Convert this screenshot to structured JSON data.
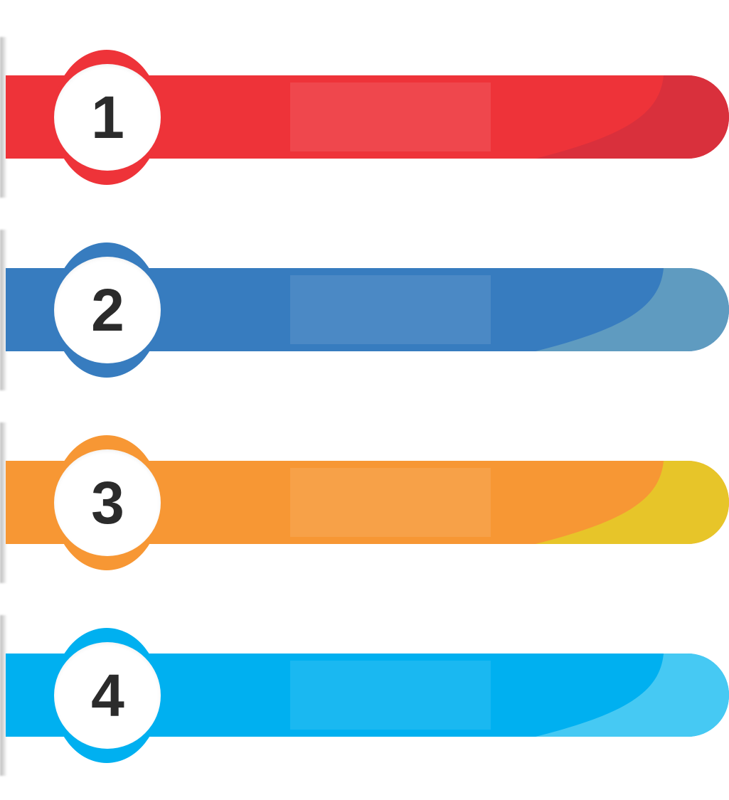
{
  "banners": [
    {
      "number": "1",
      "color": "#ee3339",
      "tip_color": "#d9303c"
    },
    {
      "number": "2",
      "color": "#377cbf",
      "tip_color": "#5f9bc0"
    },
    {
      "number": "3",
      "color": "#f79734",
      "tip_color": "#e7c529"
    },
    {
      "number": "4",
      "color": "#00b0f0",
      "tip_color": "#46c9f3"
    }
  ]
}
